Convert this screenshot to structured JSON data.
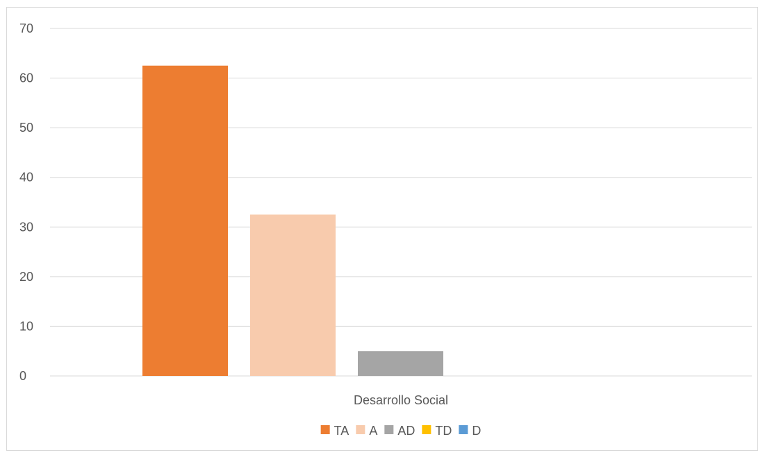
{
  "chart_data": {
    "type": "bar",
    "categories": [
      "Desarrollo Social"
    ],
    "series": [
      {
        "name": "TA",
        "values": [
          62.5
        ],
        "color": "#ED7D31"
      },
      {
        "name": "A",
        "values": [
          32.5
        ],
        "color": "#F8CBAD"
      },
      {
        "name": "AD",
        "values": [
          5
        ],
        "color": "#A5A5A5"
      },
      {
        "name": "TD",
        "values": [
          0
        ],
        "color": "#FFC000"
      },
      {
        "name": "D",
        "values": [
          0
        ],
        "color": "#5B9BD5"
      }
    ],
    "title": "",
    "xlabel": "",
    "ylabel": "",
    "ylim": [
      0,
      70
    ],
    "yticks": [
      "0",
      "10",
      "20",
      "30",
      "40",
      "50",
      "60",
      "70"
    ],
    "grid": true,
    "legend_position": "bottom",
    "gridline_color": "#D9D9D9",
    "text_color": "#595959"
  }
}
